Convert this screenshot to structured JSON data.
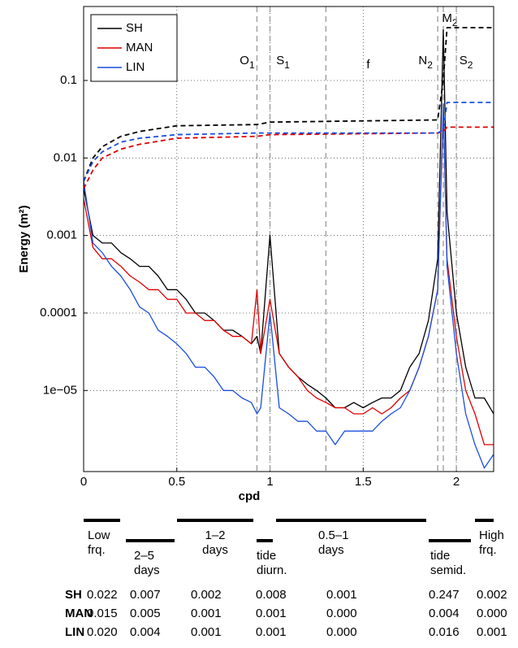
{
  "chart_data": {
    "type": "line",
    "xlabel": "cpd",
    "ylabel": "Energy (m²)",
    "xlim": [
      0,
      2.2
    ],
    "ylim": [
      9e-07,
      0.9
    ],
    "log_y": true,
    "grid": true,
    "legend": "upper left",
    "xticks": [
      0,
      0.5,
      1,
      1.5,
      2
    ],
    "yticks": [
      {
        "value": 1e-05,
        "label": "1e−05"
      },
      0.0001,
      0.001,
      0.01,
      0.1
    ],
    "x": [
      0,
      0.05,
      0.1,
      0.15,
      0.2,
      0.25,
      0.3,
      0.35,
      0.4,
      0.45,
      0.5,
      0.55,
      0.6,
      0.65,
      0.7,
      0.75,
      0.8,
      0.85,
      0.9,
      0.93,
      0.95,
      1.0,
      1.05,
      1.1,
      1.15,
      1.2,
      1.25,
      1.3,
      1.35,
      1.4,
      1.45,
      1.5,
      1.55,
      1.6,
      1.65,
      1.7,
      1.75,
      1.8,
      1.85,
      1.9,
      1.93,
      1.95,
      2.0,
      2.05,
      2.1,
      2.15,
      2.2
    ],
    "series": [
      {
        "name": "SH",
        "color": "#000000",
        "values": [
          0.004,
          0.001,
          0.0008,
          0.0008,
          0.0006,
          0.0005,
          0.0004,
          0.0004,
          0.0003,
          0.0002,
          0.0002,
          0.00015,
          0.0001,
          0.0001,
          8e-05,
          6e-05,
          6e-05,
          5e-05,
          4e-05,
          5e-05,
          3e-05,
          0.001,
          3e-05,
          2e-05,
          1.5e-05,
          1.2e-05,
          1e-05,
          8e-06,
          6e-06,
          6e-06,
          7e-06,
          6e-06,
          7e-06,
          8e-06,
          8e-06,
          1e-05,
          2e-05,
          3e-05,
          8e-05,
          0.0005,
          0.45,
          0.002,
          0.0001,
          2e-05,
          8e-06,
          8e-06,
          5e-06
        ]
      },
      {
        "name": "MAN",
        "color": "#e00000",
        "values": [
          0.003,
          0.0007,
          0.0005,
          0.0005,
          0.0004,
          0.0003,
          0.00025,
          0.0002,
          0.0002,
          0.00015,
          0.00015,
          0.0001,
          0.0001,
          8e-05,
          8e-05,
          6e-05,
          5e-05,
          5e-05,
          4e-05,
          0.0002,
          3e-05,
          0.00015,
          3e-05,
          2e-05,
          1.5e-05,
          1e-05,
          8e-06,
          7e-06,
          6e-06,
          6e-06,
          5e-06,
          5e-06,
          6e-06,
          5e-06,
          6e-06,
          8e-06,
          1e-05,
          2e-05,
          5e-05,
          0.0002,
          0.04,
          0.0005,
          5e-05,
          1e-05,
          5e-06,
          2e-06,
          2e-06
        ]
      },
      {
        "name": "LIN",
        "color": "#1a4fe0",
        "values": [
          0.005,
          0.0008,
          0.0006,
          0.0004,
          0.0003,
          0.0002,
          0.00012,
          0.0001,
          6e-05,
          5e-05,
          4e-05,
          3e-05,
          2e-05,
          2e-05,
          1.5e-05,
          1e-05,
          1e-05,
          8e-06,
          7e-06,
          5e-06,
          6e-06,
          0.0001,
          6e-06,
          5e-06,
          4e-06,
          4e-06,
          3e-06,
          3e-06,
          2e-06,
          3e-06,
          3e-06,
          3e-06,
          3e-06,
          4e-06,
          5e-06,
          6e-06,
          1e-05,
          2e-05,
          5e-05,
          0.0002,
          0.05,
          0.0004,
          3e-05,
          5e-06,
          2e-06,
          1e-06,
          1.5e-06
        ]
      },
      {
        "color": "#000000",
        "dashed": true,
        "x": [
          0,
          0.05,
          0.1,
          0.2,
          0.3,
          0.5,
          0.93,
          1.0,
          1.9,
          1.93,
          1.95,
          2.2
        ],
        "values": [
          0.005,
          0.01,
          0.014,
          0.019,
          0.022,
          0.026,
          0.027,
          0.029,
          0.031,
          0.1,
          0.48,
          0.48
        ]
      },
      {
        "color": "#e00000",
        "dashed": true,
        "x": [
          0,
          0.05,
          0.1,
          0.2,
          0.3,
          0.5,
          0.93,
          1.0,
          1.9,
          1.93,
          1.95,
          2.2
        ],
        "values": [
          0.004,
          0.007,
          0.01,
          0.013,
          0.015,
          0.018,
          0.019,
          0.02,
          0.021,
          0.022,
          0.025,
          0.025
        ]
      },
      {
        "color": "#1a4fe0",
        "dashed": true,
        "x": [
          0,
          0.05,
          0.1,
          0.2,
          0.3,
          0.5,
          0.93,
          1.0,
          1.9,
          1.93,
          1.95,
          2.2
        ],
        "values": [
          0.005,
          0.009,
          0.012,
          0.016,
          0.018,
          0.02,
          0.021,
          0.021,
          0.021,
          0.023,
          0.052,
          0.052
        ]
      }
    ],
    "tide_lines": [
      {
        "label": "O",
        "sub": "1",
        "x": 0.93
      },
      {
        "label": "S",
        "sub": "1",
        "x": 1.0
      },
      {
        "label": "f",
        "x": 1.3
      },
      {
        "label": "N",
        "sub": "2",
        "x": 1.9
      },
      {
        "label": "M",
        "sub": "2",
        "x": 1.93
      },
      {
        "label": "S",
        "sub": "2",
        "x": 2.0
      }
    ]
  },
  "table": {
    "columns": [
      [
        "Low",
        "frq."
      ],
      [
        "2–5",
        "days"
      ],
      [
        "1–2",
        "days"
      ],
      [
        "tide",
        "diurn."
      ],
      [
        "0.5–1",
        "days"
      ],
      [
        "tide",
        "semid."
      ],
      [
        "High",
        "frq."
      ]
    ],
    "rows": [
      {
        "name": "SH",
        "values": [
          "0.022",
          "0.007",
          "0.002",
          "0.008",
          "0.001",
          "0.247",
          "0.002"
        ]
      },
      {
        "name": "MAN",
        "values": [
          "0.015",
          "0.005",
          "0.001",
          "0.001",
          "0.000",
          "0.004",
          "0.000"
        ]
      },
      {
        "name": "LIN",
        "values": [
          "0.020",
          "0.004",
          "0.001",
          "0.001",
          "0.000",
          "0.016",
          "0.001"
        ]
      }
    ]
  }
}
